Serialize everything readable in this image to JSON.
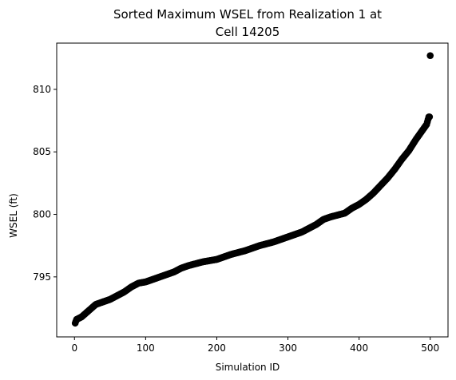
{
  "chart_data": {
    "type": "scatter",
    "title_lines": [
      "Sorted Maximum WSEL from Realization 1 at",
      "Cell 14205"
    ],
    "xlabel": "Simulation ID",
    "ylabel": "WSEL (ft)",
    "xlim": [
      -25,
      525
    ],
    "ylim": [
      790.2,
      813.7
    ],
    "xticks": [
      0,
      100,
      200,
      300,
      400,
      500
    ],
    "yticks": [
      795,
      800,
      805,
      810
    ],
    "grid": false,
    "marker_color": "#000000",
    "x_count": 500,
    "x_start": 1,
    "anchors": [
      [
        1,
        791.3
      ],
      [
        3,
        791.6
      ],
      [
        10,
        791.8
      ],
      [
        20,
        792.3
      ],
      [
        30,
        792.8
      ],
      [
        40,
        793.0
      ],
      [
        50,
        793.2
      ],
      [
        60,
        793.5
      ],
      [
        70,
        793.8
      ],
      [
        80,
        794.2
      ],
      [
        90,
        794.5
      ],
      [
        100,
        794.6
      ],
      [
        120,
        795.0
      ],
      [
        140,
        795.4
      ],
      [
        150,
        795.7
      ],
      [
        160,
        795.9
      ],
      [
        180,
        796.2
      ],
      [
        200,
        796.4
      ],
      [
        220,
        796.8
      ],
      [
        240,
        797.1
      ],
      [
        260,
        797.5
      ],
      [
        280,
        797.8
      ],
      [
        300,
        798.2
      ],
      [
        320,
        798.6
      ],
      [
        340,
        799.2
      ],
      [
        350,
        799.6
      ],
      [
        360,
        799.8
      ],
      [
        380,
        800.1
      ],
      [
        390,
        800.5
      ],
      [
        400,
        800.8
      ],
      [
        410,
        801.2
      ],
      [
        420,
        801.7
      ],
      [
        430,
        802.3
      ],
      [
        440,
        802.9
      ],
      [
        450,
        803.6
      ],
      [
        460,
        804.4
      ],
      [
        470,
        805.1
      ],
      [
        480,
        806.0
      ],
      [
        490,
        806.8
      ],
      [
        495,
        807.2
      ],
      [
        498,
        807.8
      ],
      [
        499,
        807.8
      ],
      [
        500,
        812.7
      ]
    ]
  }
}
